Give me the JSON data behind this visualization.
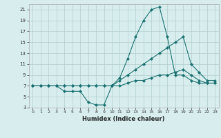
{
  "xlabel": "Humidex (Indice chaleur)",
  "bg_color": "#d8eeee",
  "grid_color": "#b0cccc",
  "line_color": "#1a7070",
  "xlim": [
    -0.5,
    23.5
  ],
  "ylim": [
    3,
    22
  ],
  "xticks": [
    0,
    1,
    2,
    3,
    4,
    5,
    6,
    7,
    8,
    9,
    10,
    11,
    12,
    13,
    14,
    15,
    16,
    17,
    18,
    19,
    20,
    21,
    22,
    23
  ],
  "yticks": [
    3,
    5,
    7,
    9,
    11,
    13,
    15,
    17,
    19,
    21
  ],
  "series": {
    "line1": {
      "x": [
        0,
        1,
        2,
        3,
        4,
        5,
        6,
        7,
        8,
        9,
        10,
        11,
        12,
        13,
        14,
        15,
        16,
        17,
        18,
        19,
        20,
        21,
        22,
        23
      ],
      "y": [
        7,
        7,
        7,
        7,
        6,
        6,
        6,
        4,
        3.5,
        3.5,
        7,
        8.5,
        12,
        16,
        19,
        21,
        21.5,
        16,
        9,
        9,
        8,
        7.5,
        7.5,
        7.5
      ]
    },
    "line2": {
      "x": [
        0,
        1,
        2,
        3,
        4,
        5,
        6,
        7,
        8,
        9,
        10,
        11,
        12,
        13,
        14,
        15,
        16,
        17,
        18,
        19,
        20,
        21,
        22,
        23
      ],
      "y": [
        7,
        7,
        7,
        7,
        7,
        7,
        7,
        7,
        7,
        7,
        7,
        8,
        9,
        10,
        11,
        12,
        13,
        14,
        15,
        16,
        11,
        9.5,
        8,
        8
      ]
    },
    "line3": {
      "x": [
        0,
        1,
        2,
        3,
        4,
        5,
        6,
        7,
        8,
        9,
        10,
        11,
        12,
        13,
        14,
        15,
        16,
        17,
        18,
        19,
        20,
        21,
        22,
        23
      ],
      "y": [
        7,
        7,
        7,
        7,
        7,
        7,
        7,
        7,
        7,
        7,
        7,
        7,
        7.5,
        8,
        8,
        8.5,
        9,
        9,
        9.5,
        10,
        9,
        8,
        7.5,
        7.5
      ]
    }
  }
}
